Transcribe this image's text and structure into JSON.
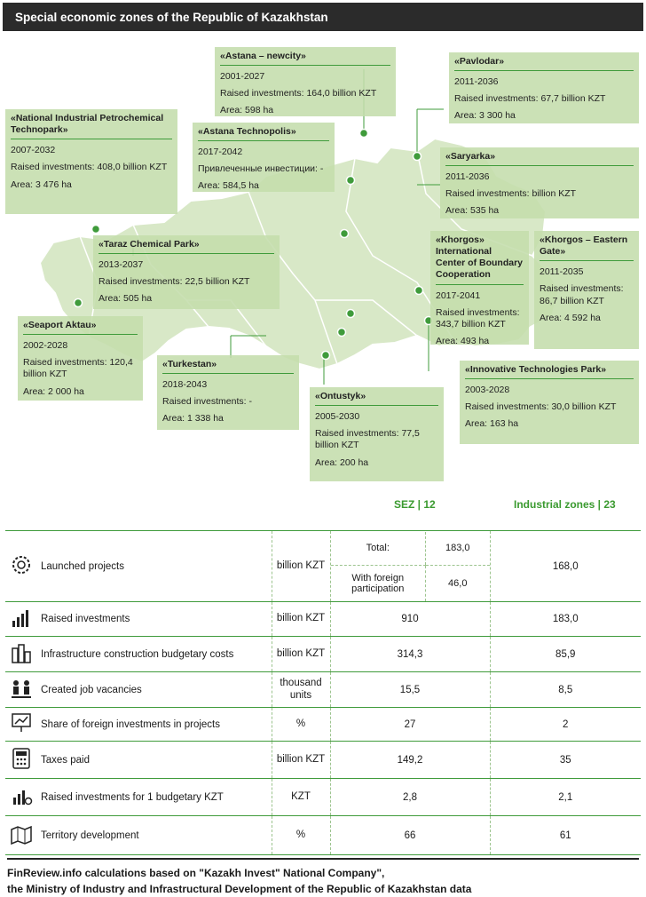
{
  "title": "Special economic zones of the Republic of Kazakhstan",
  "zones": [
    {
      "name": "«Astana – newcity»",
      "lines": [
        "2001-2027",
        "Raised investments: 164,0 billion KZT",
        "Area: 598 ha"
      ]
    },
    {
      "name": "«Pavlodar»",
      "lines": [
        "2011-2036",
        "Raised investments: 67,7 billion KZT",
        "Area: 3 300 ha"
      ]
    },
    {
      "name": "«National Industrial Petrochemical Technopark»",
      "lines": [
        "2007-2032",
        "Raised investments: 408,0 billion KZT",
        "Area: 3 476 ha"
      ]
    },
    {
      "name": "«Astana Technopolis»",
      "lines": [
        "2017-2042",
        "Привлеченные инвестиции: -",
        "Area: 584,5 ha"
      ]
    },
    {
      "name": "«Saryarka»",
      "lines": [
        "2011-2036",
        "Raised investments: billion KZT",
        "Area: 535 ha"
      ]
    },
    {
      "name": "«Taraz Chemical Park»",
      "lines": [
        "2013-2037",
        "Raised investments: 22,5 billion KZT",
        "Area: 505 ha"
      ]
    },
    {
      "name": "«Khorgos» International Center of Boundary Cooperation",
      "lines": [
        "2017-2041",
        "Raised investments: 343,7 billion KZT",
        "Area: 493 ha"
      ]
    },
    {
      "name": "«Khorgos – Eastern Gate»",
      "lines": [
        "2011-2035",
        "Raised investments: 86,7 billion KZT",
        "Area: 4 592 ha"
      ]
    },
    {
      "name": "«Seaport Aktau»",
      "lines": [
        "2002-2028",
        "Raised investments: 120,4 billion KZT",
        "Area: 2 000 ha"
      ]
    },
    {
      "name": "«Turkestan»",
      "lines": [
        "2018-2043",
        "Raised investments: -",
        "Area: 1 338 ha"
      ]
    },
    {
      "name": "«Innovative Technologies Park»",
      "lines": [
        "2003-2028",
        "Raised investments: 30,0 billion KZT",
        "Area: 163 ha"
      ]
    },
    {
      "name": "«Ontustyk»",
      "lines": [
        "2005-2030",
        "Raised investments: 77,5 billion KZT",
        "Area: 200 ha"
      ]
    }
  ],
  "table": {
    "sez_header": "SEZ | 12",
    "ind_header": "Industrial zones | 23",
    "launched": {
      "label": "Launched projects",
      "unit": "billion KZT",
      "total_label": "Total:",
      "total_value": "183,0",
      "foreign_label": "With foreign participation",
      "foreign_value": "46,0",
      "ind": "168,0"
    },
    "rows": [
      {
        "label": "Raised investments",
        "unit": "billion KZT",
        "sez": "910",
        "ind": "183,0",
        "icon": "chart-growth-icon"
      },
      {
        "label": "Infrastructure construction budgetary costs",
        "unit": "billion KZT",
        "sez": "314,3",
        "ind": "85,9",
        "icon": "city-buildings-icon"
      },
      {
        "label": "Created job vacancies",
        "unit": "thousand units",
        "sez": "15,5",
        "ind": "8,5",
        "icon": "workers-icon"
      },
      {
        "label": "Share of foreign investments in projects",
        "unit": "%",
        "sez": "27",
        "ind": "2",
        "icon": "presentation-icon"
      },
      {
        "label": "Taxes paid",
        "unit": "billion KZT",
        "sez": "149,2",
        "ind": "35",
        "icon": "calculator-icon"
      },
      {
        "label": "Raised investments for 1 budgetary KZT",
        "unit": "KZT",
        "sez": "2,8",
        "ind": "2,1",
        "icon": "coins-growth-icon"
      },
      {
        "label": "Territory development",
        "unit": "%",
        "sez": "66",
        "ind": "61",
        "icon": "territory-map-icon"
      }
    ]
  },
  "footer": {
    "line1": "FinReview.info calculations based on \"Kazakh Invest\" National Company\",",
    "line2": "the Ministry of Industry and Infrastructural Development of the Republic of Kazakhstan data"
  }
}
